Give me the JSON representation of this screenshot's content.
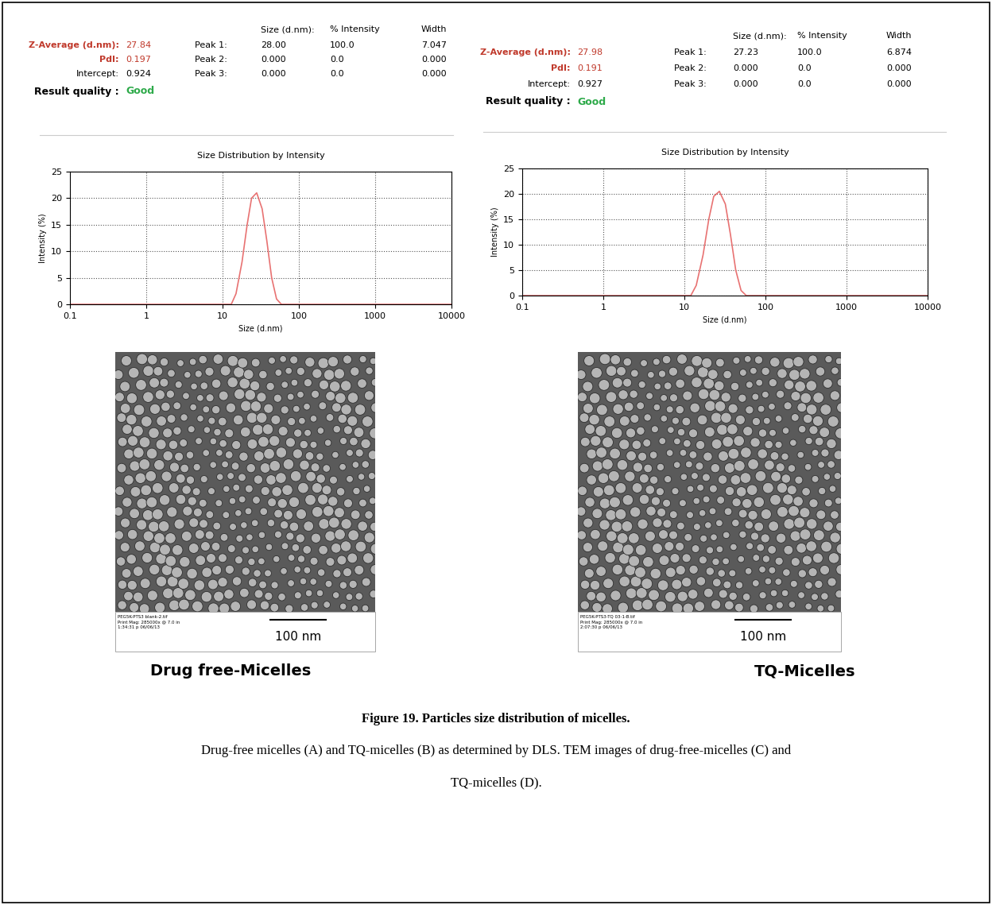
{
  "chart_data": [
    {
      "type": "line",
      "title": "Size Distribution by Intensity",
      "x_label": "Size (d.nm)",
      "y_label": "Intensity (%)",
      "x": [
        0.1,
        1,
        10,
        13,
        15,
        18,
        21,
        24,
        28,
        33,
        38,
        44,
        51,
        59,
        100,
        1000,
        10000
      ],
      "values": [
        0,
        0,
        0,
        0,
        2,
        8,
        15,
        20,
        21,
        18,
        12,
        5,
        1,
        0,
        0,
        0,
        0
      ],
      "color": "#e87272",
      "log": "x",
      "grid": true,
      "xlim": [
        0.1,
        10000
      ],
      "xticks": [
        0.1,
        1,
        10,
        100,
        1000,
        10000
      ],
      "ylim": [
        0,
        25
      ],
      "yticks": [
        0,
        5,
        10,
        15,
        20,
        25
      ],
      "stats": {
        "summary": [
          {
            "label": "Z-Average (d.nm):",
            "value": "27.84"
          },
          {
            "label": "PdI:",
            "value": "0.197"
          },
          {
            "label": "Intercept:",
            "value": "0.924"
          }
        ],
        "quality": {
          "label": "Result quality :",
          "value": "Good"
        },
        "peak_header": [
          "Size (d.nm):",
          "% Intensity",
          "Width"
        ],
        "peaks": [
          [
            "Peak 1:",
            "28.00",
            "100.0",
            "7.047"
          ],
          [
            "Peak 2:",
            "0.000",
            "0.0",
            "0.000"
          ],
          [
            "Peak 3:",
            "0.000",
            "0.0",
            "0.000"
          ]
        ]
      }
    },
    {
      "type": "line",
      "title": "Size Distribution by Intensity",
      "x_label": "Size (d.nm)",
      "y_label": "Intensity (%)",
      "x": [
        0.1,
        1,
        10,
        12,
        14,
        17,
        20,
        23,
        27,
        32,
        37,
        43,
        50,
        58,
        100,
        1000,
        10000
      ],
      "values": [
        0,
        0,
        0,
        0,
        2,
        8,
        15,
        19.5,
        20.5,
        18,
        12,
        5,
        1,
        0,
        0,
        0,
        0
      ],
      "color": "#e87272",
      "log": "x",
      "grid": true,
      "xlim": [
        0.1,
        10000
      ],
      "xticks": [
        0.1,
        1,
        10,
        100,
        1000,
        10000
      ],
      "ylim": [
        0,
        25
      ],
      "yticks": [
        0,
        5,
        10,
        15,
        20,
        25
      ],
      "stats": {
        "summary": [
          {
            "label": "Z-Average (d.nm):",
            "value": "27.98"
          },
          {
            "label": "PdI:",
            "value": "0.191"
          },
          {
            "label": "Intercept:",
            "value": "0.927"
          }
        ],
        "quality": {
          "label": "Result quality :",
          "value": "Good"
        },
        "peak_header": [
          "Size (d.nm):",
          "% Intensity",
          "Width"
        ],
        "peaks": [
          [
            "Peak 1:",
            "27.23",
            "100.0",
            "6.874"
          ],
          [
            "Peak 2:",
            "0.000",
            "0.0",
            "0.000"
          ],
          [
            "Peak 3:",
            "0.000",
            "0.0",
            "0.000"
          ]
        ]
      }
    }
  ],
  "images": [
    {
      "label": "Drug free-Micelles",
      "scale_bar": "100 nm",
      "info": [
        "PEG5K-PTS3 blank-2.tif",
        "Print Mag: 285000x @ 7.0 in",
        "1:34:31 p 06/06/13"
      ]
    },
    {
      "label": "TQ-Micelles",
      "scale_bar": "100 nm",
      "info": [
        "PEG5K-PTS3-TQ 03-1-B.tif",
        "Print Mag: 285000x @ 7.0 in",
        "2:07:30 p 06/06/13"
      ]
    }
  ],
  "caption": {
    "title": "Figure 19. Particles size distribution of micelles.",
    "text": [
      "Drug-free micelles (A) and TQ-micelles (B) as determined by DLS. TEM images of drug-free-micelles (C) and",
      "TQ-micelles (D)."
    ]
  }
}
